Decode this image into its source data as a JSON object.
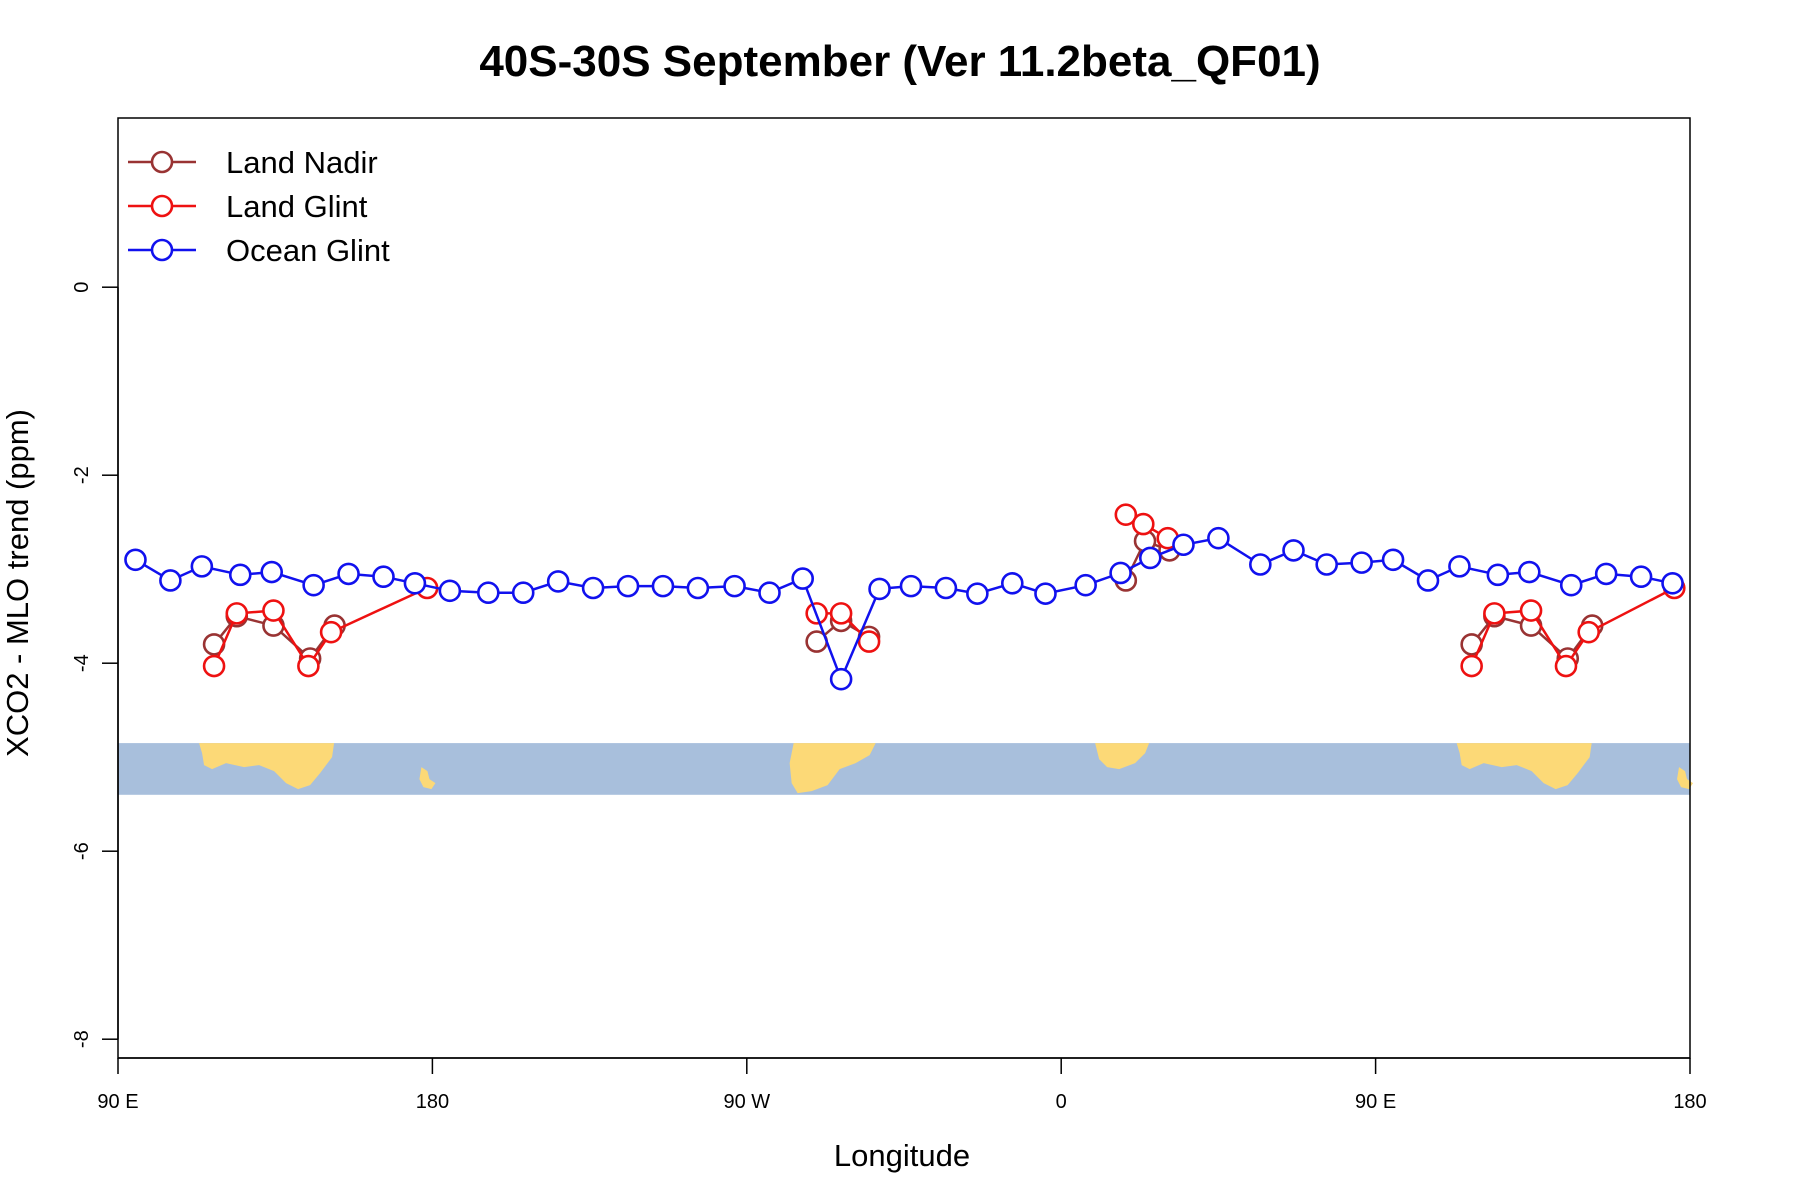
{
  "chart_data": {
    "type": "line",
    "title": "40S-30S September (Ver 11.2beta_QF01)",
    "xlabel": "Longitude",
    "ylabel": "XCO2 - MLO trend (ppm)",
    "xlim": [
      90,
      540
    ],
    "ylim": [
      -8.2,
      1.8
    ],
    "x_ticks": [
      {
        "value": 90,
        "label": "90 E"
      },
      {
        "value": 180,
        "label": "180"
      },
      {
        "value": 270,
        "label": "90 W"
      },
      {
        "value": 360,
        "label": "0"
      },
      {
        "value": 450,
        "label": "90 E"
      },
      {
        "value": 540,
        "label": "180"
      }
    ],
    "y_ticks": [
      {
        "value": 0,
        "label": "0"
      },
      {
        "value": -2,
        "label": "-2"
      },
      {
        "value": -4,
        "label": "-4"
      },
      {
        "value": -6,
        "label": "-6"
      },
      {
        "value": -8,
        "label": "-8"
      }
    ],
    "grid": false,
    "legend_position": "top-left",
    "map_strip": {
      "y_top": -4.85,
      "y_bottom": -5.4,
      "ocean_color": "#a8bfdc",
      "land_color": "#fcd977"
    },
    "series": [
      {
        "name": "Land Nadir",
        "color": "#993333",
        "points": [
          [
            117.5,
            -3.8
          ],
          [
            124,
            -3.5
          ],
          [
            134.5,
            -3.6
          ],
          [
            145,
            -3.95
          ],
          [
            152,
            -3.6
          ],
          [
            290,
            -3.77
          ],
          [
            297,
            -3.55
          ],
          [
            305,
            -3.72
          ],
          [
            378.5,
            -3.12
          ],
          [
            384,
            -2.7
          ],
          [
            391,
            -2.8
          ],
          [
            477.5,
            -3.8
          ],
          [
            484,
            -3.5
          ],
          [
            494.5,
            -3.6
          ],
          [
            505,
            -3.95
          ],
          [
            512,
            -3.6
          ]
        ]
      },
      {
        "name": "Land Glint",
        "color": "#ee1111",
        "points": [
          [
            117.5,
            -4.03
          ],
          [
            124,
            -3.47
          ],
          [
            134.5,
            -3.44
          ],
          [
            144.5,
            -4.03
          ],
          [
            151,
            -3.67
          ],
          [
            178.5,
            -3.2
          ],
          [
            290,
            -3.47
          ],
          [
            297,
            -3.47
          ],
          [
            305,
            -3.77
          ],
          [
            378.5,
            -2.42
          ],
          [
            383.5,
            -2.52
          ],
          [
            390.5,
            -2.67
          ],
          [
            477.5,
            -4.03
          ],
          [
            484,
            -3.47
          ],
          [
            494.5,
            -3.44
          ],
          [
            504.5,
            -4.03
          ],
          [
            511,
            -3.67
          ],
          [
            535.5,
            -3.2
          ]
        ]
      },
      {
        "name": "Ocean Glint",
        "color": "#1111ee",
        "points": [
          [
            95,
            -2.9
          ],
          [
            105,
            -3.12
          ],
          [
            114,
            -2.97
          ],
          [
            125,
            -3.06
          ],
          [
            134,
            -3.03
          ],
          [
            146,
            -3.17
          ],
          [
            156,
            -3.05
          ],
          [
            166,
            -3.08
          ],
          [
            175,
            -3.15
          ],
          [
            185,
            -3.23
          ],
          [
            196,
            -3.25
          ],
          [
            206,
            -3.25
          ],
          [
            216,
            -3.13
          ],
          [
            226,
            -3.2
          ],
          [
            236,
            -3.18
          ],
          [
            246,
            -3.18
          ],
          [
            256,
            -3.2
          ],
          [
            266.5,
            -3.18
          ],
          [
            276.5,
            -3.25
          ],
          [
            286,
            -3.1
          ],
          [
            297,
            -4.17
          ],
          [
            308,
            -3.21
          ],
          [
            317,
            -3.18
          ],
          [
            327,
            -3.2
          ],
          [
            336,
            -3.26
          ],
          [
            346,
            -3.15
          ],
          [
            355.5,
            -3.26
          ],
          [
            367,
            -3.17
          ],
          [
            377,
            -3.04
          ],
          [
            385.5,
            -2.88
          ],
          [
            395,
            -2.74
          ],
          [
            405,
            -2.67
          ],
          [
            417,
            -2.95
          ],
          [
            426.5,
            -2.8
          ],
          [
            436,
            -2.95
          ],
          [
            446,
            -2.93
          ],
          [
            455,
            -2.9
          ],
          [
            465,
            -3.12
          ],
          [
            474,
            -2.97
          ],
          [
            485,
            -3.06
          ],
          [
            494,
            -3.03
          ],
          [
            506,
            -3.17
          ],
          [
            516,
            -3.05
          ],
          [
            526,
            -3.08
          ],
          [
            535,
            -3.15
          ]
        ],
        "gap_after_x": [
          286
        ]
      }
    ]
  }
}
